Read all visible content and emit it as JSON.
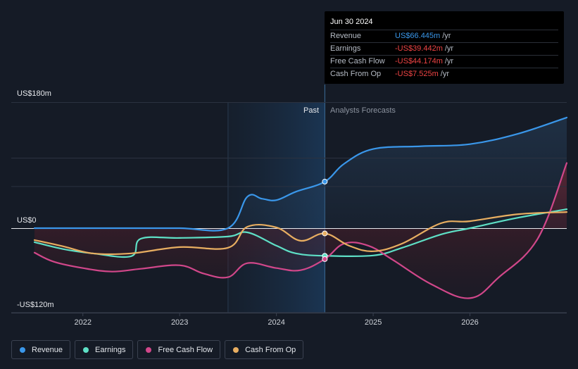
{
  "chart_data": {
    "type": "line",
    "title": "",
    "y_axis": {
      "top_label": "US$180m",
      "zero_label": "US$0",
      "bottom_label": "-US$120m",
      "ylim": [
        -120,
        180
      ]
    },
    "x_ticks": [
      "2022",
      "2023",
      "2024",
      "2025",
      "2026"
    ],
    "xlim": [
      2021.5,
      2027.0
    ],
    "regions": {
      "past_label": "Past",
      "forecast_label": "Analysts Forecasts",
      "past_start": 2023.5,
      "divider": 2024.5
    },
    "series": [
      {
        "name": "Revenue",
        "color": "#3a97ea",
        "points": [
          [
            2021.5,
            0
          ],
          [
            2022.0,
            0
          ],
          [
            2022.5,
            0
          ],
          [
            2023.0,
            0
          ],
          [
            2023.5,
            0
          ],
          [
            2023.7,
            45
          ],
          [
            2023.85,
            42
          ],
          [
            2024.0,
            40
          ],
          [
            2024.2,
            52
          ],
          [
            2024.5,
            66.445
          ],
          [
            2024.7,
            92
          ],
          [
            2025.0,
            113
          ],
          [
            2025.5,
            117
          ],
          [
            2026.0,
            120
          ],
          [
            2026.5,
            135
          ],
          [
            2027.0,
            158
          ]
        ]
      },
      {
        "name": "Earnings",
        "color": "#5ee0c6",
        "points": [
          [
            2021.5,
            -20
          ],
          [
            2021.8,
            -30
          ],
          [
            2022.1,
            -36
          ],
          [
            2022.5,
            -40
          ],
          [
            2022.6,
            -15
          ],
          [
            2023.0,
            -14
          ],
          [
            2023.5,
            -12
          ],
          [
            2023.7,
            -6
          ],
          [
            2024.0,
            -25
          ],
          [
            2024.2,
            -36
          ],
          [
            2024.5,
            -39.442
          ],
          [
            2025.0,
            -39
          ],
          [
            2025.3,
            -28
          ],
          [
            2025.7,
            -9
          ],
          [
            2026.0,
            0
          ],
          [
            2026.5,
            15
          ],
          [
            2027.0,
            27
          ]
        ]
      },
      {
        "name": "Free Cash Flow",
        "color": "#d1478a",
        "points": [
          [
            2021.5,
            -35
          ],
          [
            2021.7,
            -48
          ],
          [
            2022.0,
            -57
          ],
          [
            2022.3,
            -62
          ],
          [
            2022.6,
            -58
          ],
          [
            2023.0,
            -53
          ],
          [
            2023.25,
            -65
          ],
          [
            2023.5,
            -70
          ],
          [
            2023.7,
            -50
          ],
          [
            2024.0,
            -57
          ],
          [
            2024.25,
            -60
          ],
          [
            2024.5,
            -44.174
          ],
          [
            2024.7,
            -22
          ],
          [
            2024.95,
            -25
          ],
          [
            2025.2,
            -45
          ],
          [
            2025.6,
            -80
          ],
          [
            2026.0,
            -100
          ],
          [
            2026.3,
            -70
          ],
          [
            2026.7,
            -15
          ],
          [
            2027.0,
            93
          ]
        ]
      },
      {
        "name": "Cash From Op",
        "color": "#e8ae61",
        "points": [
          [
            2021.5,
            -17
          ],
          [
            2021.8,
            -26
          ],
          [
            2022.1,
            -36
          ],
          [
            2022.5,
            -36
          ],
          [
            2023.0,
            -27
          ],
          [
            2023.5,
            -28
          ],
          [
            2023.7,
            2
          ],
          [
            2024.0,
            1
          ],
          [
            2024.25,
            -18
          ],
          [
            2024.5,
            -7.525
          ],
          [
            2024.75,
            -25
          ],
          [
            2025.0,
            -33
          ],
          [
            2025.3,
            -22
          ],
          [
            2025.7,
            7
          ],
          [
            2026.0,
            10
          ],
          [
            2026.5,
            20
          ],
          [
            2027.0,
            23
          ]
        ]
      }
    ]
  },
  "tooltip": {
    "date": "Jun 30 2024",
    "rows": [
      {
        "label": "Revenue",
        "value": "US$66.445m",
        "unit": "/yr",
        "color": "#3a97ea"
      },
      {
        "label": "Earnings",
        "value": "-US$39.442m",
        "unit": "/yr",
        "color": "#ef4444"
      },
      {
        "label": "Free Cash Flow",
        "value": "-US$44.174m",
        "unit": "/yr",
        "color": "#ef4444"
      },
      {
        "label": "Cash From Op",
        "value": "-US$7.525m",
        "unit": "/yr",
        "color": "#ef4444"
      }
    ]
  },
  "legend": [
    {
      "label": "Revenue",
      "color": "#3a97ea"
    },
    {
      "label": "Earnings",
      "color": "#5ee0c6"
    },
    {
      "label": "Free Cash Flow",
      "color": "#d1478a"
    },
    {
      "label": "Cash From Op",
      "color": "#e8ae61"
    }
  ]
}
